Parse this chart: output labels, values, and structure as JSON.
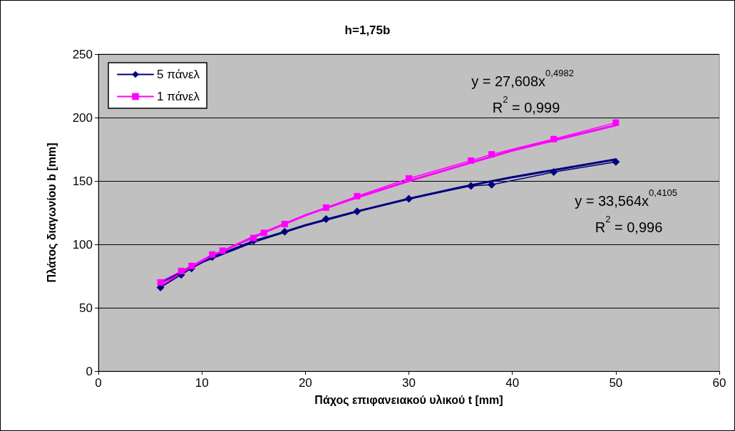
{
  "chart_data": {
    "type": "line",
    "title": "h=1,75b",
    "xlabel": "Πάχος επιφανειακού υλικού t [mm]",
    "ylabel": "Πλάτος διαγωνίου b [mm]",
    "series": [
      {
        "name": "5 πάνελ",
        "color": "#000080",
        "marker": "diamond",
        "x": [
          6,
          8,
          9,
          11,
          15,
          18,
          22,
          25,
          30,
          36,
          38,
          44,
          50
        ],
        "values": [
          66,
          76,
          81,
          90,
          103,
          110,
          120,
          126,
          136,
          146,
          147,
          157,
          165
        ]
      },
      {
        "name": "1 πάνελ",
        "color": "#ff00ff",
        "marker": "square",
        "x": [
          6,
          8,
          9,
          11,
          12,
          15,
          16,
          18,
          22,
          25,
          30,
          36,
          38,
          44,
          50
        ],
        "values": [
          70,
          79,
          83,
          92,
          95,
          105,
          109,
          116,
          129,
          138,
          152,
          166,
          171,
          183,
          196
        ]
      },
      {
        "type": "line",
        "color": "#000080",
        "marker": "none",
        "x": [
          6,
          10,
          15,
          20,
          25,
          30,
          35,
          40,
          45,
          50
        ],
        "values": [
          70,
          86,
          102,
          115,
          126,
          136,
          145,
          153,
          160,
          167
        ]
      },
      {
        "type": "line",
        "color": "#ff00ff",
        "marker": "none",
        "x": [
          6,
          10,
          15,
          20,
          25,
          30,
          35,
          40,
          45,
          50
        ],
        "values": [
          67,
          87,
          106,
          123,
          137,
          150,
          162,
          174,
          184,
          194
        ]
      }
    ],
    "annotations": [
      "y = 27,608x$^{0,4982}$",
      "R$^{2}$ = 0,999",
      "y = 33,564x$^{0,4105}$",
      "R$^{2}$ = 0,996"
    ],
    "xlim": [
      0,
      60
    ],
    "xticks": [
      0,
      10,
      20,
      30,
      40,
      50,
      60
    ],
    "ylim": [
      0,
      250
    ],
    "yticks": [
      0,
      50,
      100,
      150,
      200,
      250
    ],
    "grid": "y",
    "legend": "top left",
    "line_style": "solid"
  }
}
